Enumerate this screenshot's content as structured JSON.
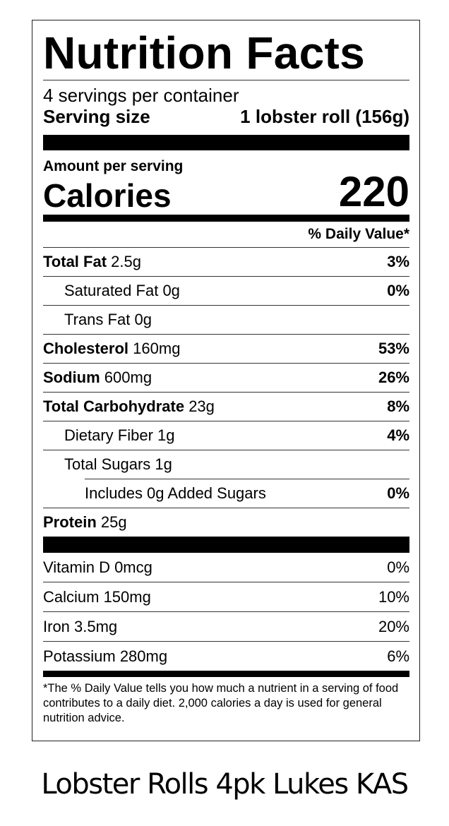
{
  "title": "Nutrition Facts",
  "servings_per_container": "4 servings per container",
  "serving_size_label": "Serving size",
  "serving_size_value": "1 lobster roll (156g)",
  "amount_per_serving": "Amount per serving",
  "calories_label": "Calories",
  "calories_value": "220",
  "daily_value_header": "% Daily Value*",
  "nutrients": [
    {
      "name": "Total Fat",
      "amount": "2.5g",
      "dv": "3%"
    },
    {
      "name": "Saturated Fat",
      "amount": "0g",
      "dv": "0%"
    },
    {
      "name": "Trans Fat",
      "amount": "0g",
      "dv": ""
    },
    {
      "name": "Cholesterol",
      "amount": "160mg",
      "dv": "53%"
    },
    {
      "name": "Sodium",
      "amount": "600mg",
      "dv": "26%"
    },
    {
      "name": "Total Carbohydrate",
      "amount": "23g",
      "dv": "8%"
    },
    {
      "name": "Dietary Fiber",
      "amount": "1g",
      "dv": "4%"
    },
    {
      "name": "Total Sugars",
      "amount": "1g",
      "dv": ""
    },
    {
      "name": "Includes 0g Added Sugars",
      "amount": "",
      "dv": "0%"
    },
    {
      "name": "Protein",
      "amount": "25g",
      "dv": ""
    }
  ],
  "vitamins": [
    {
      "text": "Vitamin D 0mcg",
      "dv": "0%"
    },
    {
      "text": "Calcium 150mg",
      "dv": "10%"
    },
    {
      "text": "Iron 3.5mg",
      "dv": "20%"
    },
    {
      "text": "Potassium 280mg",
      "dv": "6%"
    }
  ],
  "footnote": "*The % Daily Value tells you how much a nutrient in a serving of food contributes to a daily diet. 2,000 calories a day is used for general nutrition advice.",
  "caption": "Lobster Rolls 4pk Lukes KAS"
}
